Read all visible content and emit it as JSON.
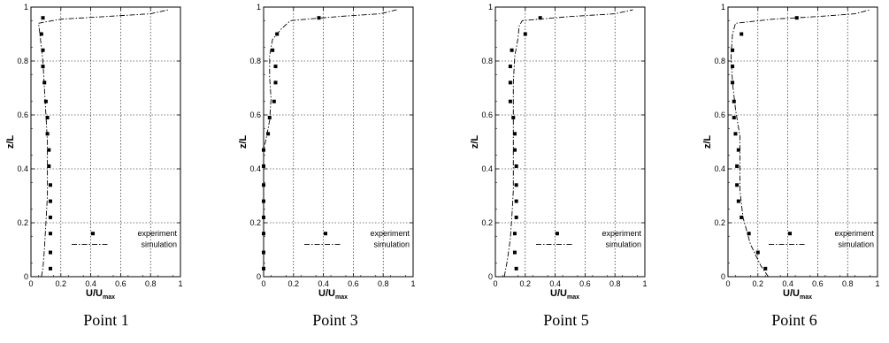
{
  "chart_data": [
    {
      "type": "line",
      "caption": "Point 1",
      "xlabel": "U/U",
      "xlabel_sub": "max",
      "ylabel": "z/L",
      "xlim": [
        0,
        1
      ],
      "ylim": [
        0,
        1
      ],
      "x_ticks": [
        "0",
        "0.2",
        "0.4",
        "0.6",
        "0.8",
        "1"
      ],
      "y_ticks": [
        "0",
        "0.2",
        "0.4",
        "0.6",
        "0.8",
        "1"
      ],
      "grid": true,
      "legend_position": "bottom-right",
      "series": [
        {
          "name": "experiment",
          "style": "markers",
          "points": [
            [
              0.13,
              0.03
            ],
            [
              0.13,
              0.09
            ],
            [
              0.13,
              0.16
            ],
            [
              0.13,
              0.22
            ],
            [
              0.13,
              0.28
            ],
            [
              0.13,
              0.34
            ],
            [
              0.12,
              0.41
            ],
            [
              0.12,
              0.47
            ],
            [
              0.11,
              0.53
            ],
            [
              0.11,
              0.59
            ],
            [
              0.1,
              0.65
            ],
            [
              0.09,
              0.72
            ],
            [
              0.08,
              0.78
            ],
            [
              0.08,
              0.84
            ],
            [
              0.07,
              0.9
            ],
            [
              0.08,
              0.96
            ]
          ]
        },
        {
          "name": "simulation",
          "style": "dash-dot",
          "points": [
            [
              0.07,
              0.0
            ],
            [
              0.08,
              0.03
            ],
            [
              0.09,
              0.1
            ],
            [
              0.1,
              0.2
            ],
            [
              0.11,
              0.3
            ],
            [
              0.11,
              0.4
            ],
            [
              0.11,
              0.5
            ],
            [
              0.1,
              0.6
            ],
            [
              0.09,
              0.7
            ],
            [
              0.08,
              0.8
            ],
            [
              0.06,
              0.9
            ],
            [
              0.05,
              0.94
            ],
            [
              0.2,
              0.955
            ],
            [
              0.5,
              0.965
            ],
            [
              0.8,
              0.975
            ],
            [
              0.92,
              0.99
            ]
          ]
        }
      ]
    },
    {
      "type": "line",
      "caption": "Point 3",
      "xlabel": "U/U",
      "xlabel_sub": "max",
      "ylabel": "z/L",
      "xlim": [
        0,
        1
      ],
      "ylim": [
        0,
        1
      ],
      "x_ticks": [
        "0",
        "0.2",
        "0.4",
        "0.6",
        "0.8",
        "1"
      ],
      "y_ticks": [
        "0",
        "0.2",
        "0.4",
        "0.6",
        "0.8",
        "1"
      ],
      "grid": true,
      "legend_position": "bottom-right",
      "series": [
        {
          "name": "experiment",
          "style": "markers",
          "points": [
            [
              0.0,
              0.03
            ],
            [
              0.0,
              0.09
            ],
            [
              0.0,
              0.16
            ],
            [
              0.0,
              0.22
            ],
            [
              0.0,
              0.28
            ],
            [
              0.0,
              0.34
            ],
            [
              0.0,
              0.41
            ],
            [
              0.0,
              0.47
            ],
            [
              0.03,
              0.53
            ],
            [
              0.04,
              0.59
            ],
            [
              0.07,
              0.65
            ],
            [
              0.08,
              0.72
            ],
            [
              0.08,
              0.78
            ],
            [
              0.06,
              0.84
            ],
            [
              0.09,
              0.9
            ],
            [
              0.37,
              0.96
            ]
          ]
        },
        {
          "name": "simulation",
          "style": "dash-dot",
          "points": [
            [
              0.0,
              0.0
            ],
            [
              0.0,
              0.2
            ],
            [
              0.0,
              0.4
            ],
            [
              0.0,
              0.47
            ],
            [
              0.02,
              0.52
            ],
            [
              0.04,
              0.58
            ],
            [
              0.05,
              0.66
            ],
            [
              0.04,
              0.74
            ],
            [
              0.04,
              0.82
            ],
            [
              0.06,
              0.88
            ],
            [
              0.12,
              0.92
            ],
            [
              0.18,
              0.95
            ],
            [
              0.5,
              0.965
            ],
            [
              0.78,
              0.975
            ],
            [
              0.89,
              0.99
            ]
          ]
        }
      ]
    },
    {
      "type": "line",
      "caption": "Point 5",
      "xlabel": "U/U",
      "xlabel_sub": "max",
      "ylabel": "z/L",
      "xlim": [
        0,
        1
      ],
      "ylim": [
        0,
        1
      ],
      "x_ticks": [
        "0",
        "0.2",
        "0.4",
        "0.6",
        "0.8",
        "1"
      ],
      "y_ticks": [
        "0",
        "0.2",
        "0.4",
        "0.6",
        "0.8",
        "1"
      ],
      "grid": true,
      "legend_position": "bottom-right",
      "series": [
        {
          "name": "experiment",
          "style": "markers",
          "points": [
            [
              0.14,
              0.03
            ],
            [
              0.13,
              0.09
            ],
            [
              0.13,
              0.16
            ],
            [
              0.14,
              0.22
            ],
            [
              0.14,
              0.28
            ],
            [
              0.14,
              0.34
            ],
            [
              0.14,
              0.41
            ],
            [
              0.13,
              0.47
            ],
            [
              0.13,
              0.53
            ],
            [
              0.12,
              0.59
            ],
            [
              0.1,
              0.65
            ],
            [
              0.1,
              0.72
            ],
            [
              0.1,
              0.78
            ],
            [
              0.11,
              0.84
            ],
            [
              0.2,
              0.9
            ],
            [
              0.3,
              0.96
            ]
          ]
        },
        {
          "name": "simulation",
          "style": "dash-dot",
          "points": [
            [
              0.06,
              0.0
            ],
            [
              0.08,
              0.06
            ],
            [
              0.1,
              0.14
            ],
            [
              0.11,
              0.22
            ],
            [
              0.12,
              0.32
            ],
            [
              0.12,
              0.42
            ],
            [
              0.12,
              0.52
            ],
            [
              0.12,
              0.62
            ],
            [
              0.12,
              0.72
            ],
            [
              0.13,
              0.82
            ],
            [
              0.15,
              0.88
            ],
            [
              0.16,
              0.93
            ],
            [
              0.18,
              0.95
            ],
            [
              0.5,
              0.965
            ],
            [
              0.8,
              0.975
            ],
            [
              0.92,
              0.99
            ]
          ]
        }
      ]
    },
    {
      "type": "line",
      "caption": "Point 6",
      "xlabel": "U/U",
      "xlabel_sub": "max",
      "ylabel": "z/L",
      "xlim": [
        0,
        1
      ],
      "ylim": [
        0,
        1
      ],
      "x_ticks": [
        "0",
        "0.2",
        "0.4",
        "0.6",
        "0.8",
        "1"
      ],
      "y_ticks": [
        "0",
        "0.2",
        "0.4",
        "0.6",
        "0.8",
        "1"
      ],
      "grid": true,
      "legend_position": "bottom-right",
      "series": [
        {
          "name": "experiment",
          "style": "markers",
          "points": [
            [
              0.25,
              0.03
            ],
            [
              0.2,
              0.09
            ],
            [
              0.14,
              0.16
            ],
            [
              0.09,
              0.22
            ],
            [
              0.07,
              0.28
            ],
            [
              0.06,
              0.34
            ],
            [
              0.06,
              0.41
            ],
            [
              0.07,
              0.47
            ],
            [
              0.05,
              0.53
            ],
            [
              0.04,
              0.59
            ],
            [
              0.04,
              0.65
            ],
            [
              0.03,
              0.72
            ],
            [
              0.03,
              0.78
            ],
            [
              0.03,
              0.84
            ],
            [
              0.09,
              0.9
            ],
            [
              0.46,
              0.96
            ]
          ]
        },
        {
          "name": "simulation",
          "style": "dash-dot",
          "points": [
            [
              0.27,
              0.0
            ],
            [
              0.22,
              0.04
            ],
            [
              0.15,
              0.12
            ],
            [
              0.1,
              0.22
            ],
            [
              0.08,
              0.32
            ],
            [
              0.08,
              0.42
            ],
            [
              0.08,
              0.52
            ],
            [
              0.05,
              0.62
            ],
            [
              0.03,
              0.72
            ],
            [
              0.02,
              0.82
            ],
            [
              0.03,
              0.9
            ],
            [
              0.05,
              0.94
            ],
            [
              0.3,
              0.955
            ],
            [
              0.6,
              0.965
            ],
            [
              0.85,
              0.975
            ],
            [
              0.95,
              0.99
            ]
          ]
        }
      ]
    }
  ]
}
